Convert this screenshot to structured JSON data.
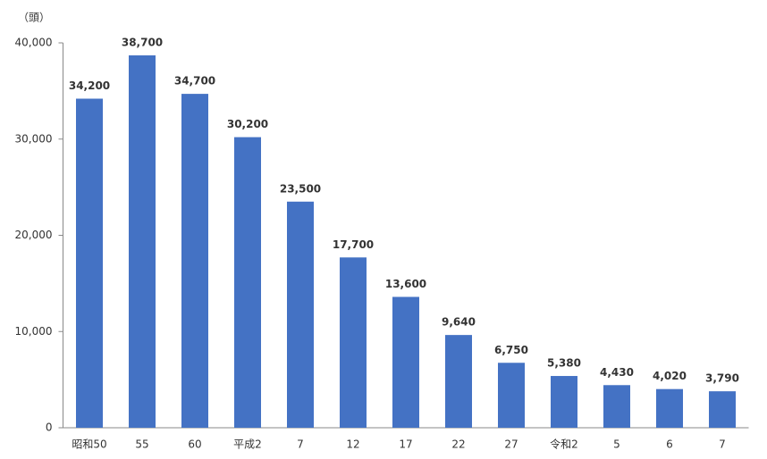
{
  "chart_data": {
    "type": "bar",
    "ylabel": "（頭）",
    "categories": [
      "昭和50",
      "55",
      "60",
      "平成2",
      "7",
      "12",
      "17",
      "22",
      "27",
      "令和2",
      "5",
      "6",
      "7"
    ],
    "values": [
      34200,
      38700,
      34700,
      30200,
      23500,
      17700,
      13600,
      9640,
      6750,
      5380,
      4430,
      4020,
      3790
    ],
    "value_labels": [
      "34,200",
      "38,700",
      "34,700",
      "30,200",
      "23,500",
      "17,700",
      "13,600",
      "9,640",
      "6,750",
      "5,380",
      "4,430",
      "4,020",
      "3,790"
    ],
    "color": "#4472c4",
    "ylim": [
      0,
      40000
    ],
    "yticks": [
      0,
      {
        "value": 10000,
        "label": "10,000"
      },
      {
        "value": 20000,
        "label": "20,000"
      },
      {
        "value": 30000,
        "label": "30,000"
      },
      {
        "value": 40000,
        "label": "40,000"
      }
    ],
    "grid": false
  }
}
